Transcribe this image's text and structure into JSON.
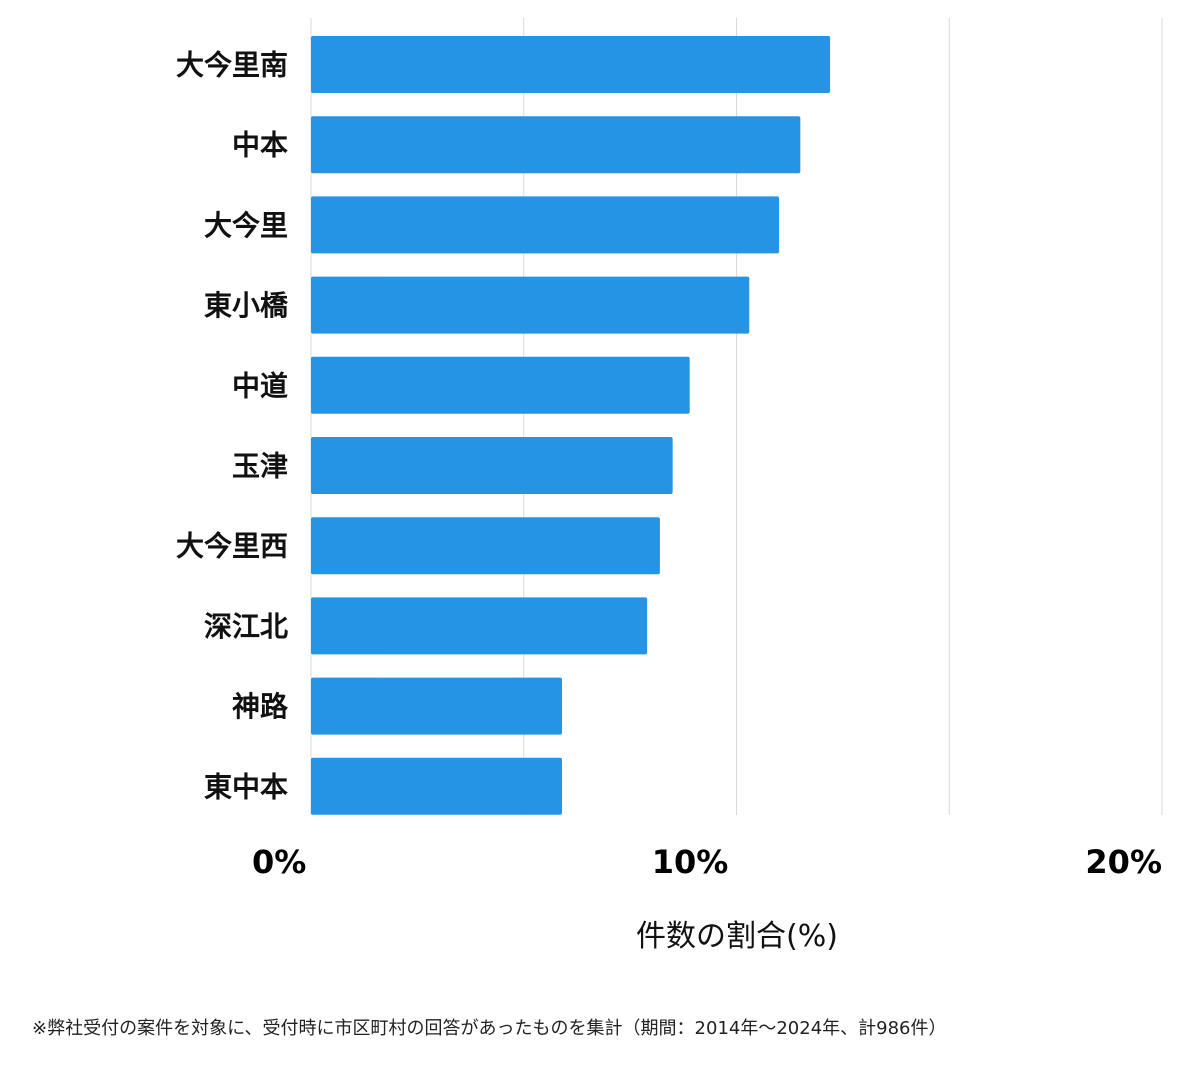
{
  "chart_data": {
    "type": "bar",
    "orientation": "horizontal",
    "categories": [
      "大今里南",
      "中本",
      "大今里",
      "東小橋",
      "中道",
      "玉津",
      "大今里西",
      "深江北",
      "神路",
      "東中本"
    ],
    "values": [
      12.2,
      11.5,
      11.0,
      10.3,
      8.9,
      8.5,
      8.2,
      7.9,
      5.9,
      5.9
    ],
    "xlabel": "件数の割合(%)",
    "ylabel": "",
    "xlim": [
      0,
      20
    ],
    "x_ticks": [
      0,
      10,
      20
    ],
    "x_tick_labels": [
      "0%",
      "10%",
      "20%"
    ],
    "grid": "vertical lines at 5% intervals",
    "bar_color": "#2694E5",
    "grid_color": "#D9D9D9"
  },
  "footnote": "※弊社受付の案件を対象に、受付時に市区町村の回答があったものを集計（期間：2014年～2024年、計986件）"
}
